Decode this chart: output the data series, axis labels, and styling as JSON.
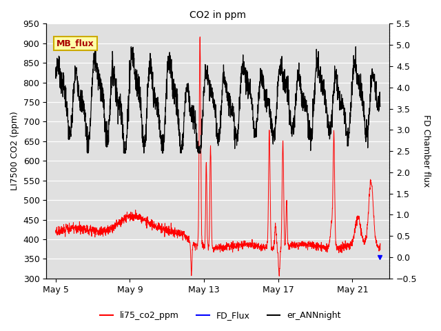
{
  "title": "CO2 in ppm",
  "ylabel_left": "LI7500 CO2 (ppm)",
  "ylabel_right": "FD Chamber flux",
  "ylim_left": [
    300,
    950
  ],
  "ylim_right": [
    -0.5,
    5.5
  ],
  "yticks_left": [
    300,
    350,
    400,
    450,
    500,
    550,
    600,
    650,
    700,
    750,
    800,
    850,
    900,
    950
  ],
  "yticks_right": [
    -0.5,
    0.0,
    0.5,
    1.0,
    1.5,
    2.0,
    2.5,
    3.0,
    3.5,
    4.0,
    4.5,
    5.0,
    5.5
  ],
  "xtick_labels": [
    "May 5",
    "May 9",
    "May 13",
    "May 17",
    "May 21"
  ],
  "xtick_positions": [
    0,
    4,
    8,
    12,
    16
  ],
  "xlim": [
    -0.5,
    18.0
  ],
  "background_color": "#e0e0e0",
  "legend_labels": [
    "li75_co2_ppm",
    "FD_Flux",
    "er_ANNnight"
  ],
  "legend_colors": [
    "red",
    "blue",
    "black"
  ],
  "watermark_text": "MB_flux",
  "watermark_bg": "#ffffaa",
  "watermark_border": "#ccaa00",
  "watermark_color": "#aa0000"
}
